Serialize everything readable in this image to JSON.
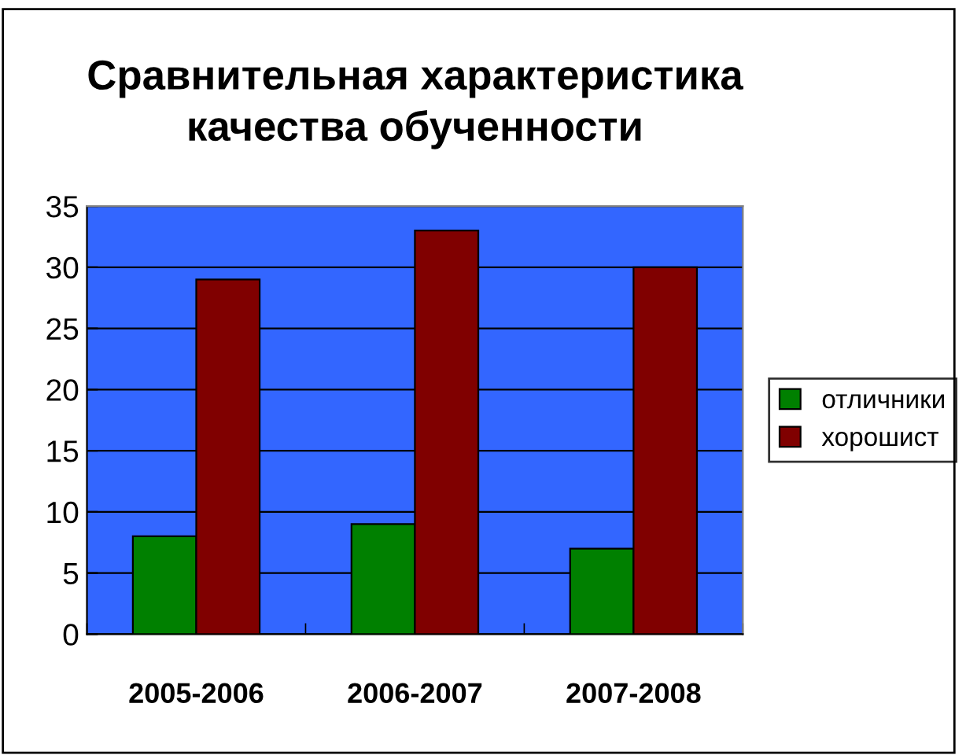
{
  "chart_data": {
    "type": "bar",
    "title": "Сравнительная характеристика\nкачества обученности",
    "categories": [
      "2005-2006",
      "2006-2007",
      "2007-2008"
    ],
    "series": [
      {
        "name": "отличники",
        "color": "#008000",
        "values": [
          8,
          9,
          7
        ]
      },
      {
        "name": "хорошист",
        "color": "#800000",
        "values": [
          29,
          33,
          30
        ]
      }
    ],
    "ylim": [
      0,
      35
    ],
    "yticks": [
      0,
      5,
      10,
      15,
      20,
      25,
      30,
      35
    ],
    "grid": "y",
    "legend": "right"
  }
}
